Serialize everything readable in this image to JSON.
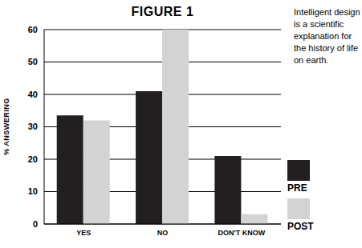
{
  "chart_data": {
    "type": "bar",
    "title": "FIGURE 1",
    "annotation": "Intelligent design is a scientific explanation for the history of life on earth.",
    "y_label": "% ANSWERING",
    "categories": [
      "YES",
      "NO",
      "DON'T KNOW"
    ],
    "series": [
      {
        "name": "PRE",
        "color": "#231f20",
        "values": [
          33.5,
          41,
          21
        ]
      },
      {
        "name": "POST",
        "color": "#d3d3d3",
        "values": [
          32,
          60,
          3
        ]
      }
    ],
    "ylim": [
      0,
      60
    ],
    "yticks": [
      0,
      10,
      20,
      30,
      40,
      50,
      60
    ],
    "grid": true,
    "legend": "right"
  }
}
